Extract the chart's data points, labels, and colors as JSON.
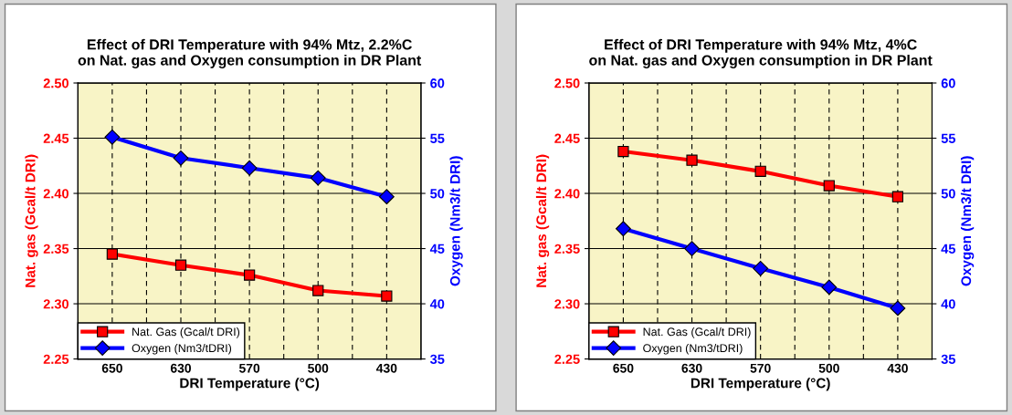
{
  "chart_data": [
    {
      "type": "line",
      "title": "Effect of DRI Temperature with 94% Mtz, 2.2%C\non Nat. gas and Oxygen consumption in DR Plant",
      "xlabel": "DRI Temperature (°C)",
      "ylabel": "Nat. gas (Gcal/t DRI)",
      "y2label": "Oxygen (Nm3/t DRI)",
      "categories": [
        "650",
        "630",
        "570",
        "500",
        "430"
      ],
      "series": [
        {
          "name": "Nat. Gas (Gcal/t DRI)",
          "color": "#ff0000",
          "marker": "square",
          "values": [
            2.345,
            2.335,
            2.326,
            2.312,
            2.307
          ]
        },
        {
          "name": "Oxygen (Nm3/tDRI)",
          "color": "#0000ff",
          "marker": "diamond",
          "axis": "y2",
          "values": [
            55.1,
            53.2,
            52.3,
            51.4,
            49.7
          ]
        }
      ],
      "ylim": [
        2.25,
        2.5
      ],
      "yticks": [
        {
          "value": 2.25,
          "label": "2.25"
        },
        {
          "value": 2.3,
          "label": "2.30"
        },
        {
          "value": 2.35,
          "label": "2.35"
        },
        {
          "value": 2.4,
          "label": "2.40"
        },
        {
          "value": 2.45,
          "label": "2.45"
        },
        {
          "value": 2.5,
          "label": "2.50"
        }
      ],
      "y2lim": [
        35,
        60
      ],
      "y2ticks": [
        35,
        40,
        45,
        50,
        55,
        60
      ],
      "grid": true,
      "legend": "bottom left"
    },
    {
      "type": "line",
      "title": "Effect of DRI Temperature with 94% Mtz, 4%C\non Nat. gas and Oxygen consumption in DR Plant",
      "xlabel": "DRI Temperature (°C)",
      "ylabel": "Nat. gas (Gcal/t DRI)",
      "y2label": "Oxygen (Nm3/t DRI)",
      "categories": [
        "650",
        "630",
        "570",
        "500",
        "430"
      ],
      "series": [
        {
          "name": "Nat. Gas (Gcal/t DRI)",
          "color": "#ff0000",
          "marker": "square",
          "values": [
            2.438,
            2.43,
            2.42,
            2.407,
            2.397
          ]
        },
        {
          "name": "Oxygen (Nm3/tDRI)",
          "color": "#0000ff",
          "marker": "diamond",
          "axis": "y2",
          "values": [
            46.8,
            45.0,
            43.2,
            41.5,
            39.6
          ]
        }
      ],
      "ylim": [
        2.25,
        2.5
      ],
      "yticks": [
        {
          "value": 2.25,
          "label": "2.25"
        },
        {
          "value": 2.3,
          "label": "2.30"
        },
        {
          "value": 2.35,
          "label": "2.35"
        },
        {
          "value": 2.4,
          "label": "2.40"
        },
        {
          "value": 2.45,
          "label": "2.45"
        },
        {
          "value": 2.5,
          "label": "2.50"
        }
      ],
      "y2lim": [
        35,
        60
      ],
      "y2ticks": [
        35,
        40,
        45,
        50,
        55,
        60
      ],
      "grid": true,
      "legend": "bottom left"
    }
  ]
}
